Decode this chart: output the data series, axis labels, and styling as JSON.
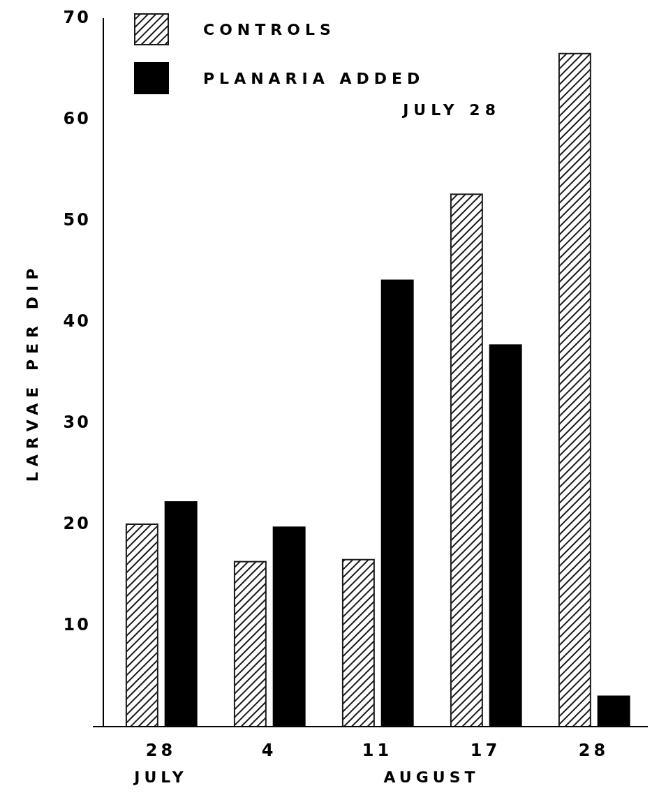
{
  "chart_data": {
    "type": "bar",
    "ylabel": "LARVAE PER DIP",
    "categories": [
      "28",
      "4",
      "11",
      "17",
      "28"
    ],
    "series": [
      {
        "name": "CONTROLS",
        "color": "#1a1a1a",
        "values": [
          20,
          16.3,
          16.5,
          52.6,
          66.5
        ]
      },
      {
        "name": "PLANARIA ADDED JULY 28",
        "color": "#000000",
        "values": [
          22.2,
          19.7,
          44.1,
          37.7,
          3
        ]
      }
    ],
    "ylim": [
      0,
      70
    ],
    "yticks": [
      10,
      20,
      30,
      40,
      50,
      60,
      70
    ],
    "annotations": [
      "JULY",
      "AUGUST"
    ],
    "legend": "top left",
    "grid": false
  }
}
